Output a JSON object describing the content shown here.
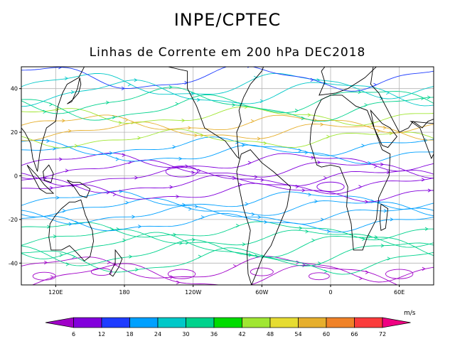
{
  "header": {
    "title": "INPE/CPTEC",
    "subtitle": "Linhas de Corrente em 200 hPa DEC2018"
  },
  "map": {
    "lon_range": [
      90,
      450
    ],
    "lat_range": [
      -50,
      50
    ],
    "lat_ticks": [
      {
        "value": 40,
        "label": "40"
      },
      {
        "value": 20,
        "label": "20"
      },
      {
        "value": 0,
        "label": "0"
      },
      {
        "value": -20,
        "label": "-20"
      },
      {
        "value": -40,
        "label": "-40"
      }
    ],
    "lon_ticks": [
      {
        "value": 120,
        "label": "120E"
      },
      {
        "value": 180,
        "label": "180"
      },
      {
        "value": 240,
        "label": "120W"
      },
      {
        "value": 300,
        "label": "60W"
      },
      {
        "value": 360,
        "label": "0"
      },
      {
        "value": 420,
        "label": "60E"
      }
    ]
  },
  "colorbar": {
    "units": "m/s",
    "labels": [
      "6",
      "12",
      "18",
      "24",
      "30",
      "36",
      "42",
      "48",
      "54",
      "60",
      "66",
      "72"
    ],
    "colors": [
      "#a000c8",
      "#8200dc",
      "#1e3cff",
      "#00a0ff",
      "#00c8c8",
      "#00d28c",
      "#00dc00",
      "#a0e632",
      "#e6dc32",
      "#e6af2d",
      "#f08228",
      "#fa3c3c",
      "#f00082"
    ]
  }
}
